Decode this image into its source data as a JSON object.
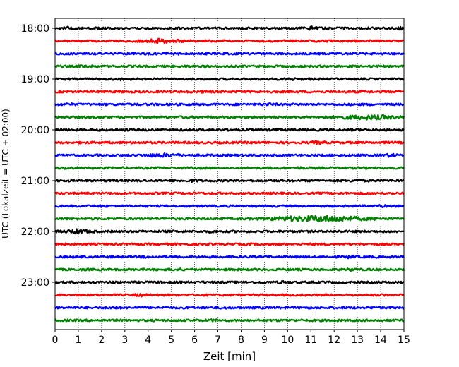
{
  "chart_data": {
    "type": "line",
    "title": "",
    "xlabel": "Zeit  [min]",
    "ylabel": "UTC (Lokalzeit = UTC + 02:00)",
    "xlim": [
      0,
      15
    ],
    "x_ticks": [
      0,
      1,
      2,
      3,
      4,
      5,
      6,
      7,
      8,
      9,
      10,
      11,
      12,
      13,
      14,
      15
    ],
    "x_tick_labels": [
      "0",
      "1",
      "2",
      "3",
      "4",
      "5",
      "6",
      "7",
      "8",
      "9",
      "10",
      "11",
      "12",
      "13",
      "14",
      "15"
    ],
    "y_tick_labels": [
      "18:00",
      "19:00",
      "20:00",
      "21:00",
      "22:00",
      "23:00"
    ],
    "grid": "vertical dotted",
    "legend": "none",
    "trace_interval_minutes": 15,
    "color_cycle": [
      "#000000",
      "#ff0000",
      "#0000ff",
      "#008000"
    ],
    "traces": [
      {
        "start": "18:00",
        "color": "#000000",
        "bursts": [
          {
            "x": 0.5,
            "amp": 1.8
          },
          {
            "x": 11.0,
            "amp": 1.8
          },
          {
            "x": 14.8,
            "amp": 1.6
          }
        ]
      },
      {
        "start": "18:15",
        "color": "#ff0000",
        "bursts": [
          {
            "x": 4.6,
            "amp": 2.4,
            "width": 0.7
          }
        ]
      },
      {
        "start": "18:30",
        "color": "#0000ff",
        "bursts": [
          {
            "x": 5.2,
            "amp": 1.4
          }
        ]
      },
      {
        "start": "18:45",
        "color": "#008000",
        "bursts": [
          {
            "x": 1.3,
            "amp": 1.6
          },
          {
            "x": 5.8,
            "amp": 1.3
          }
        ]
      },
      {
        "start": "19:00",
        "color": "#000000",
        "bursts": [
          {
            "x": 2.8,
            "amp": 1.4
          },
          {
            "x": 10.1,
            "amp": 1.6
          }
        ]
      },
      {
        "start": "19:15",
        "color": "#ff0000",
        "bursts": [
          {
            "x": 6.5,
            "amp": 1.3
          },
          {
            "x": 13.2,
            "amp": 1.2
          }
        ]
      },
      {
        "start": "19:30",
        "color": "#0000ff",
        "bursts": [
          {
            "x": 0.6,
            "amp": 1.3
          },
          {
            "x": 9.2,
            "amp": 1.5
          }
        ]
      },
      {
        "start": "19:45",
        "color": "#008000",
        "bursts": [
          {
            "x": 5.5,
            "amp": 1.3
          },
          {
            "x": 13.5,
            "amp": 2.4,
            "width": 1.2
          }
        ]
      },
      {
        "start": "20:00",
        "color": "#000000",
        "bursts": [
          {
            "x": 3.2,
            "amp": 1.3
          },
          {
            "x": 9.5,
            "amp": 1.4
          }
        ]
      },
      {
        "start": "20:15",
        "color": "#ff0000",
        "bursts": [
          {
            "x": 11.3,
            "amp": 1.9
          }
        ]
      },
      {
        "start": "20:30",
        "color": "#0000ff",
        "bursts": [
          {
            "x": 4.6,
            "amp": 2.0,
            "width": 0.8
          },
          {
            "x": 14.4,
            "amp": 1.8
          }
        ]
      },
      {
        "start": "20:45",
        "color": "#008000",
        "bursts": [
          {
            "x": 0.5,
            "amp": 1.4
          },
          {
            "x": 10.5,
            "amp": 1.3
          }
        ]
      },
      {
        "start": "21:00",
        "color": "#000000",
        "bursts": [
          {
            "x": 6.0,
            "amp": 1.8
          },
          {
            "x": 12.9,
            "amp": 1.5
          }
        ]
      },
      {
        "start": "21:15",
        "color": "#ff0000",
        "bursts": [
          {
            "x": 4.1,
            "amp": 1.2
          }
        ]
      },
      {
        "start": "21:30",
        "color": "#0000ff",
        "bursts": [
          {
            "x": 2.0,
            "amp": 1.3
          },
          {
            "x": 14.0,
            "amp": 1.4
          }
        ]
      },
      {
        "start": "21:45",
        "color": "#008000",
        "bursts": [
          {
            "x": 9.8,
            "amp": 1.6,
            "width": 0.8
          },
          {
            "x": 11.6,
            "amp": 3.2,
            "width": 1.6
          }
        ]
      },
      {
        "start": "22:00",
        "color": "#000000",
        "bursts": [
          {
            "x": 1.0,
            "amp": 2.4,
            "width": 0.5
          },
          {
            "x": 6.8,
            "amp": 1.3
          }
        ]
      },
      {
        "start": "22:15",
        "color": "#ff0000",
        "bursts": [
          {
            "x": 8.3,
            "amp": 1.3
          }
        ]
      },
      {
        "start": "22:30",
        "color": "#0000ff",
        "bursts": [
          {
            "x": 3.9,
            "amp": 1.3
          },
          {
            "x": 12.7,
            "amp": 1.6
          }
        ]
      },
      {
        "start": "22:45",
        "color": "#008000",
        "bursts": [
          {
            "x": 5.2,
            "amp": 1.4
          },
          {
            "x": 12.7,
            "amp": 1.5
          }
        ]
      },
      {
        "start": "23:00",
        "color": "#000000",
        "bursts": [
          {
            "x": 2.5,
            "amp": 1.3
          },
          {
            "x": 9.8,
            "amp": 1.5
          }
        ]
      },
      {
        "start": "23:15",
        "color": "#ff0000",
        "bursts": [
          {
            "x": 3.7,
            "amp": 1.6
          },
          {
            "x": 14.1,
            "amp": 1.2
          }
        ]
      },
      {
        "start": "23:30",
        "color": "#0000ff",
        "bursts": [
          {
            "x": 2.5,
            "amp": 1.5
          },
          {
            "x": 7.2,
            "amp": 1.3
          }
        ]
      },
      {
        "start": "23:45",
        "color": "#008000",
        "bursts": [
          {
            "x": 6.8,
            "amp": 1.4
          },
          {
            "x": 12.1,
            "amp": 1.2
          }
        ]
      }
    ]
  }
}
